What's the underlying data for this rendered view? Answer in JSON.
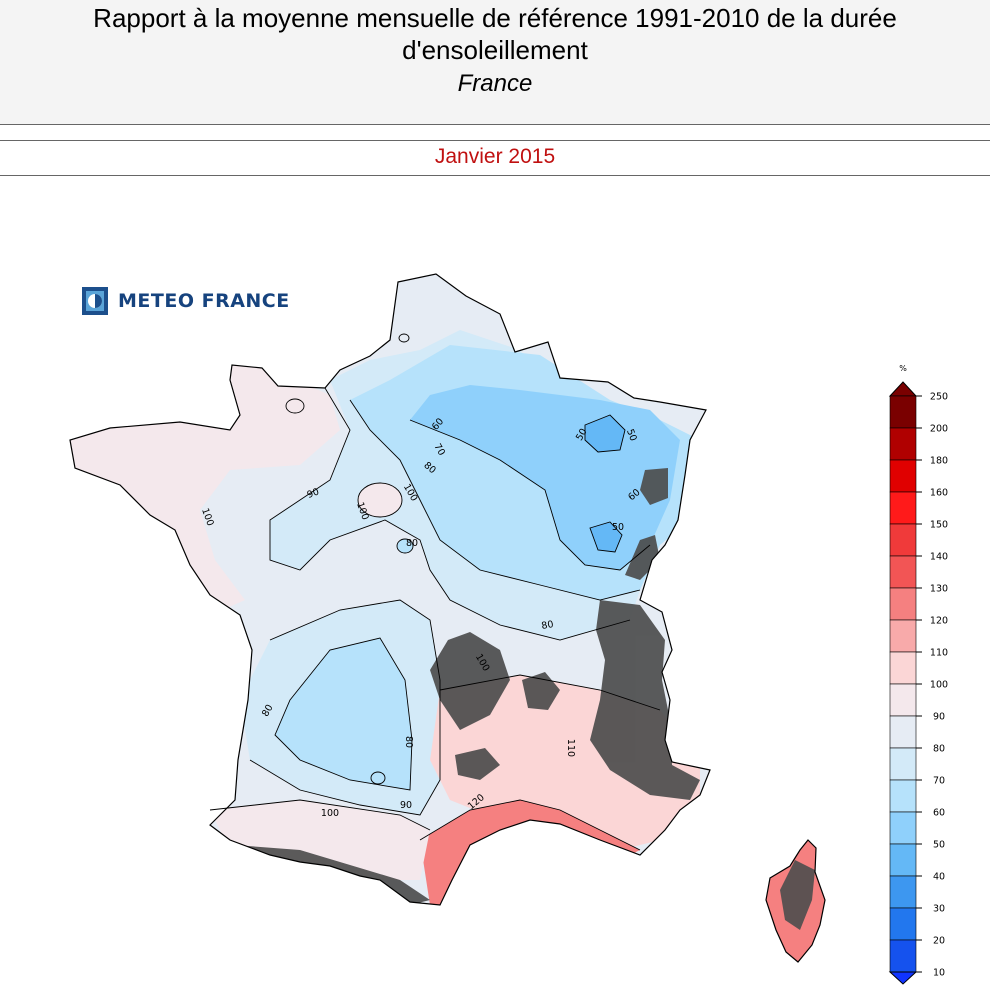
{
  "header": {
    "title": "Rapport à la moyenne mensuelle de référence 1991-2010 de la durée d'ensoleillement",
    "subtitle": "France"
  },
  "period": "Janvier 2015",
  "logo": {
    "text": "METEO FRANCE"
  },
  "legend": {
    "unit": "%",
    "ticks": [
      250,
      200,
      180,
      160,
      150,
      140,
      130,
      120,
      110,
      100,
      90,
      80,
      70,
      60,
      50,
      40,
      30,
      20,
      10
    ],
    "colors": [
      "#7a0000",
      "#b00000",
      "#e00000",
      "#ff1a1a",
      "#f03a3a",
      "#f25555",
      "#f58080",
      "#f8aaaa",
      "#fbd6d6",
      "#f4e8ec",
      "#e6ecf4",
      "#d3eaf8",
      "#b6e2fb",
      "#8fd0fb",
      "#64b8f6",
      "#3d97f0",
      "#2277ee",
      "#1552ee",
      "#1034ff"
    ]
  },
  "map": {
    "region": "France",
    "relief_color": "#4d4d4d",
    "contour_labels": [
      "50",
      "50",
      "50",
      "60",
      "60",
      "70",
      "80",
      "80",
      "80",
      "80",
      "80",
      "90",
      "90",
      "100",
      "100",
      "100",
      "100",
      "100",
      "110",
      "120"
    ]
  }
}
